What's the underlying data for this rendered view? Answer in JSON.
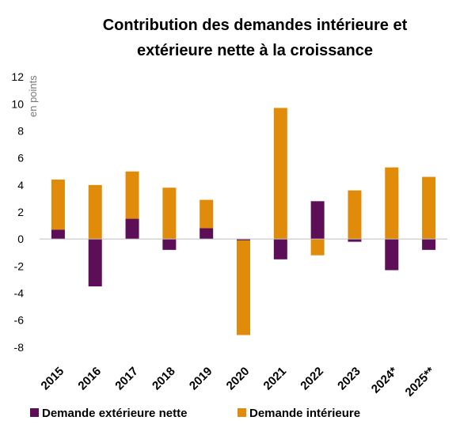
{
  "chart_data": {
    "type": "stacked_bar",
    "title": [
      "Contribution des demandes intérieure et",
      "extérieure nette à la croissance"
    ],
    "y_label": "en points",
    "categories": [
      "2015",
      "2016",
      "2017",
      "2018",
      "2019",
      "2020",
      "2021",
      "2022",
      "2023",
      "2024*",
      "2025**"
    ],
    "series": [
      {
        "name": "Demande extérieure nette",
        "color": "#5c0f57",
        "values": [
          0.7,
          -3.5,
          1.5,
          -0.8,
          0.8,
          -0.1,
          -1.5,
          2.8,
          -0.2,
          -2.3,
          -0.8
        ]
      },
      {
        "name": "Demande intérieure",
        "color": "#e08c0a",
        "values": [
          3.7,
          4.0,
          3.5,
          3.8,
          2.1,
          -7.0,
          9.7,
          -1.2,
          3.6,
          5.3,
          4.6
        ]
      }
    ],
    "ylim": [
      -9,
      13
    ],
    "yticks": [
      -8,
      -6,
      -4,
      -2,
      0,
      2,
      4,
      6,
      8,
      10,
      12
    ],
    "legend": "bottom"
  }
}
